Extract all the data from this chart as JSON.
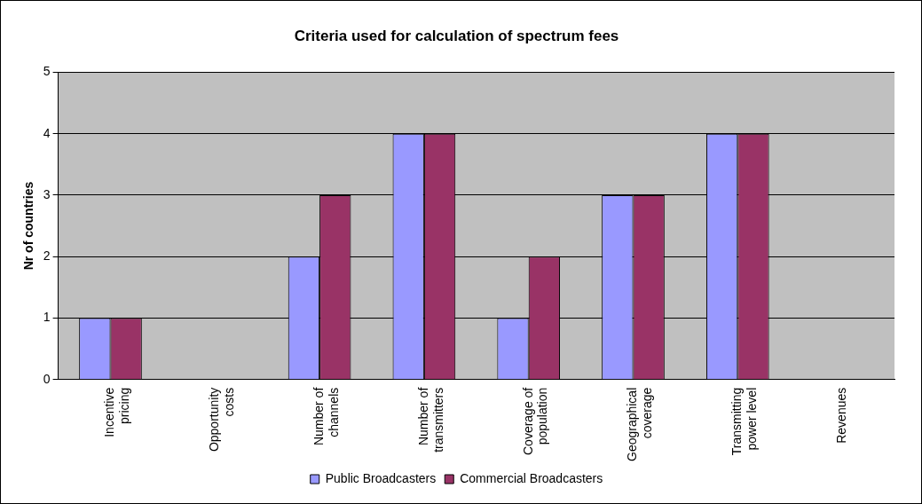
{
  "chart_data": {
    "type": "bar",
    "title": "Criteria used for calculation of spectrum fees",
    "ylabel": "Nr of countries",
    "categories": [
      "Incentive pricing",
      "Opportunity costs",
      "Number of channels",
      "Number of transmitters",
      "Coverage of population",
      "Geographical coverage",
      "Transmitting power level",
      "Revenues"
    ],
    "series": [
      {
        "name": "Public Broadcasters",
        "color": "#9999ff",
        "values": [
          1,
          0,
          2,
          4,
          1,
          3,
          4,
          0
        ]
      },
      {
        "name": "Commercial Broadcasters",
        "color": "#993366",
        "values": [
          1,
          0,
          3,
          4,
          2,
          3,
          4,
          0
        ]
      }
    ],
    "ylim": [
      0,
      5
    ],
    "yticks": [
      0,
      1,
      2,
      3,
      4,
      5
    ],
    "grid": "y",
    "legend": "bottom"
  }
}
